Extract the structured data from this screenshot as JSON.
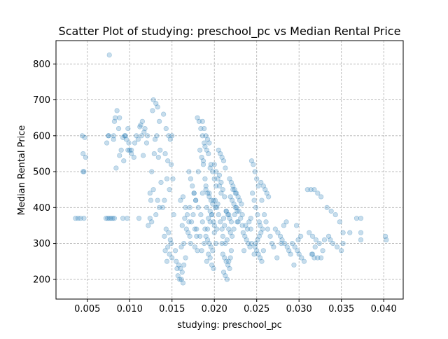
{
  "chart_data": {
    "type": "scatter",
    "title": "Scatter Plot of studying: preschool_pc vs Median Rental Price",
    "xlabel": "studying: preschool_pc",
    "ylabel": "Median Rental Price",
    "xlim": [
      0.0013,
      0.0423
    ],
    "ylim": [
      145,
      865
    ],
    "xticks": [
      0.005,
      0.01,
      0.015,
      0.02,
      0.025,
      0.03,
      0.035,
      0.04
    ],
    "xtick_labels": [
      "0.005",
      "0.010",
      "0.015",
      "0.020",
      "0.025",
      "0.030",
      "0.035",
      "0.040"
    ],
    "yticks": [
      200,
      300,
      400,
      500,
      600,
      700,
      800
    ],
    "ytick_labels": [
      "200",
      "300",
      "400",
      "500",
      "600",
      "700",
      "800"
    ],
    "grid": true,
    "legend": "none",
    "point_color": "#1f77b4",
    "point_alpha": 0.25,
    "series": [
      {
        "x": [
          0.0036,
          0.0039,
          0.0042,
          0.0046,
          0.0044,
          0.0047,
          0.0045,
          0.0048,
          0.0046,
          0.0045,
          0.0072,
          0.0074,
          0.0076,
          0.0078,
          0.008,
          0.0082,
          0.0075,
          0.0073,
          0.0081,
          0.0092,
          0.0097,
          0.0111,
          0.0124,
          0.0076,
          0.0075,
          0.0085,
          0.0088,
          0.0082,
          0.0094,
          0.0096,
          0.0099,
          0.01,
          0.009,
          0.0102,
          0.0083,
          0.0087,
          0.0081,
          0.0092,
          0.0098,
          0.0088,
          0.0093,
          0.0084,
          0.0102,
          0.0106,
          0.0108,
          0.0112,
          0.0115,
          0.0118,
          0.0114,
          0.012,
          0.011,
          0.0117,
          0.0121,
          0.0113,
          0.0116,
          0.0128,
          0.0131,
          0.0133,
          0.0135,
          0.0127,
          0.0132,
          0.0136,
          0.0129,
          0.0134,
          0.013,
          0.0126,
          0.0125,
          0.0124,
          0.0128,
          0.0133,
          0.0135,
          0.0131,
          0.0126,
          0.0137,
          0.0122,
          0.014,
          0.0143,
          0.0146,
          0.0148,
          0.015,
          0.0142,
          0.0145,
          0.0149,
          0.0144,
          0.0151,
          0.0147,
          0.0141,
          0.0139,
          0.0152,
          0.0143,
          0.0146,
          0.0141,
          0.0148,
          0.0149,
          0.0145,
          0.0142,
          0.0147,
          0.015,
          0.0144,
          0.0155,
          0.0158,
          0.016,
          0.0162,
          0.0157,
          0.0161,
          0.0163,
          0.0159,
          0.0156,
          0.0164,
          0.0166,
          0.0154,
          0.016,
          0.0163,
          0.0166,
          0.0168,
          0.0165,
          0.017,
          0.0162,
          0.0167,
          0.0169,
          0.0171,
          0.0164,
          0.0161,
          0.017,
          0.0172,
          0.0174,
          0.0176,
          0.0178,
          0.0171,
          0.0175,
          0.0173,
          0.0177,
          0.0179,
          0.0172,
          0.018,
          0.018,
          0.0182,
          0.0184,
          0.0186,
          0.0188,
          0.0183,
          0.0185,
          0.0187,
          0.0181,
          0.0189,
          0.019,
          0.0186,
          0.0176,
          0.0178,
          0.0181,
          0.0184,
          0.0186,
          0.0179,
          0.0183,
          0.0188,
          0.0177,
          0.0185,
          0.019,
          0.0192,
          0.0194,
          0.0196,
          0.0198,
          0.0191,
          0.0195,
          0.0197,
          0.0193,
          0.0199,
          0.02,
          0.0192,
          0.0196,
          0.0198,
          0.02,
          0.0202,
          0.0194,
          0.0199,
          0.0201,
          0.0197,
          0.0195,
          0.0203,
          0.0186,
          0.0188,
          0.019,
          0.0192,
          0.0194,
          0.0189,
          0.0191,
          0.0193,
          0.0187,
          0.0195,
          0.019,
          0.0192,
          0.0194,
          0.0196,
          0.0198,
          0.0193,
          0.0195,
          0.0191,
          0.0197,
          0.0199,
          0.0189,
          0.02,
          0.02,
          0.0202,
          0.0204,
          0.0206,
          0.0208,
          0.0201,
          0.0203,
          0.0205,
          0.0207,
          0.0209,
          0.021,
          0.0202,
          0.0205,
          0.0207,
          0.0209,
          0.0211,
          0.0213,
          0.0206,
          0.0208,
          0.021,
          0.0212,
          0.0204,
          0.0214,
          0.0211,
          0.021,
          0.0212,
          0.0214,
          0.0216,
          0.0218,
          0.0211,
          0.0213,
          0.0215,
          0.0217,
          0.0219,
          0.022,
          0.0209,
          0.0218,
          0.022,
          0.0222,
          0.0224,
          0.0226,
          0.0219,
          0.0221,
          0.0223,
          0.0225,
          0.0227,
          0.0217,
          0.0228,
          0.0214,
          0.0216,
          0.0218,
          0.022,
          0.0212,
          0.0217,
          0.0219,
          0.0221,
          0.0215,
          0.0213,
          0.0222,
          0.0225,
          0.0228,
          0.023,
          0.0232,
          0.0226,
          0.0229,
          0.0224,
          0.0231,
          0.0227,
          0.0233,
          0.0223,
          0.0234,
          0.0236,
          0.0238,
          0.024,
          0.0242,
          0.0235,
          0.0237,
          0.0239,
          0.0241,
          0.0243,
          0.0233,
          0.0244,
          0.0244,
          0.0246,
          0.0248,
          0.025,
          0.0252,
          0.0245,
          0.0247,
          0.0249,
          0.0251,
          0.0253,
          0.0254,
          0.0243,
          0.0248,
          0.025,
          0.0252,
          0.0254,
          0.0256,
          0.0249,
          0.0251,
          0.0253,
          0.0255,
          0.0257,
          0.0258,
          0.0247,
          0.0255,
          0.0258,
          0.026,
          0.0262,
          0.0264,
          0.0256,
          0.0259,
          0.0261,
          0.0263,
          0.0266,
          0.0268,
          0.027,
          0.0272,
          0.0275,
          0.0278,
          0.028,
          0.0283,
          0.0286,
          0.0288,
          0.029,
          0.0274,
          0.0282,
          0.0285,
          0.0279,
          0.0292,
          0.0295,
          0.0298,
          0.03,
          0.0303,
          0.0306,
          0.0294,
          0.0299,
          0.0302,
          0.0297,
          0.031,
          0.0314,
          0.0318,
          0.0322,
          0.0326,
          0.0312,
          0.0316,
          0.032,
          0.0324,
          0.0319,
          0.0328,
          0.0315,
          0.033,
          0.0335,
          0.034,
          0.0345,
          0.035,
          0.0333,
          0.0338,
          0.0343,
          0.0348,
          0.0352,
          0.0337,
          0.036,
          0.0368,
          0.0373,
          0.0373,
          0.0373,
          0.0402,
          0.0403,
          0.0318,
          0.0322,
          0.0326,
          0.0352,
          0.0316,
          0.0105,
          0.0095,
          0.0098
        ],
        "y": [
          370,
          370,
          370,
          370,
          600,
          595,
          550,
          540,
          500,
          500,
          370,
          370,
          370,
          370,
          370,
          370,
          600,
          580,
          590,
          370,
          370,
          370,
          370,
          825,
          600,
          670,
          650,
          640,
          600,
          590,
          580,
          560,
          560,
          550,
          650,
          620,
          600,
          595,
          560,
          545,
          530,
          510,
          560,
          580,
          600,
          625,
          640,
          620,
          600,
          580,
          590,
          610,
          600,
          630,
          545,
          700,
          690,
          680,
          640,
          670,
          600,
          560,
          550,
          540,
          590,
          500,
          420,
          440,
          450,
          420,
          400,
          380,
          360,
          470,
          350,
          660,
          620,
          600,
          590,
          600,
          550,
          530,
          520,
          480,
          480,
          450,
          420,
          400,
          380,
          340,
          330,
          320,
          310,
          300,
          290,
          280,
          270,
          260,
          250,
          250,
          240,
          230,
          220,
          210,
          200,
          190,
          200,
          230,
          240,
          260,
          280,
          420,
          430,
          400,
          380,
          370,
          360,
          350,
          340,
          330,
          320,
          300,
          290,
          500,
          480,
          460,
          440,
          420,
          400,
          380,
          360,
          340,
          320,
          300,
          280,
          650,
          640,
          620,
          600,
          580,
          560,
          540,
          520,
          500,
          480,
          460,
          440,
          440,
          420,
          400,
          380,
          360,
          340,
          320,
          300,
          290,
          280,
          450,
          440,
          430,
          420,
          410,
          400,
          390,
          380,
          370,
          360,
          350,
          340,
          520,
          500,
          480,
          460,
          440,
          420,
          400,
          380,
          360,
          340,
          640,
          620,
          600,
          590,
          580,
          570,
          560,
          550,
          530,
          510,
          320,
          310,
          300,
          290,
          280,
          270,
          260,
          250,
          240,
          230,
          340,
          330,
          520,
          500,
          480,
          460,
          440,
          420,
          400,
          380,
          360,
          340,
          320,
          300,
          560,
          550,
          540,
          530,
          510,
          490,
          470,
          450,
          430,
          410,
          390,
          370,
          270,
          260,
          250,
          240,
          230,
          220,
          210,
          200,
          250,
          260,
          280,
          300,
          480,
          470,
          460,
          450,
          440,
          430,
          420,
          410,
          400,
          390,
          380,
          360,
          390,
          380,
          370,
          360,
          350,
          340,
          330,
          320,
          310,
          300,
          450,
          440,
          430,
          420,
          410,
          400,
          390,
          380,
          370,
          360,
          350,
          340,
          330,
          320,
          310,
          300,
          290,
          280,
          350,
          340,
          360,
          370,
          380,
          300,
          530,
          520,
          500,
          480,
          460,
          440,
          420,
          400,
          380,
          360,
          350,
          340,
          290,
          280,
          270,
          260,
          250,
          300,
          310,
          320,
          330,
          340,
          280,
          270,
          470,
          460,
          450,
          440,
          430,
          420,
          380,
          360,
          340,
          320,
          300,
          290,
          340,
          330,
          320,
          310,
          300,
          290,
          280,
          270,
          260,
          350,
          360,
          300,
          300,
          290,
          280,
          270,
          260,
          250,
          240,
          310,
          320,
          350,
          450,
          450,
          450,
          440,
          430,
          330,
          320,
          310,
          300,
          290,
          280,
          270,
          310,
          320,
          300,
          290,
          280,
          400,
          390,
          380,
          360,
          330,
          310,
          330,
          370,
          370,
          330,
          310,
          320,
          310,
          260,
          260,
          260,
          300,
          270,
          540,
          600,
          620
        ]
      }
    ]
  }
}
